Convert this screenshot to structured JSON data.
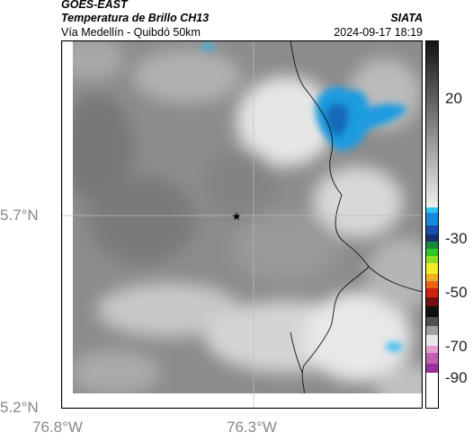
{
  "header": {
    "line1": "GOES-EAST",
    "line2": "Temperatura de Brillo CH13",
    "line3": "Vía Medellín - Quibdó 50km",
    "source": "SIATA",
    "datetime": "2024-09-17 18:19"
  },
  "axes": {
    "y_labels": [
      "5.7°N",
      "5.2°N"
    ],
    "x_labels": [
      "76.8°W",
      "76.3°W"
    ]
  },
  "colorbar": {
    "ticks": [
      "20",
      "-30",
      "-50",
      "-70",
      "-90"
    ]
  },
  "marker": {
    "symbol": "★"
  }
}
